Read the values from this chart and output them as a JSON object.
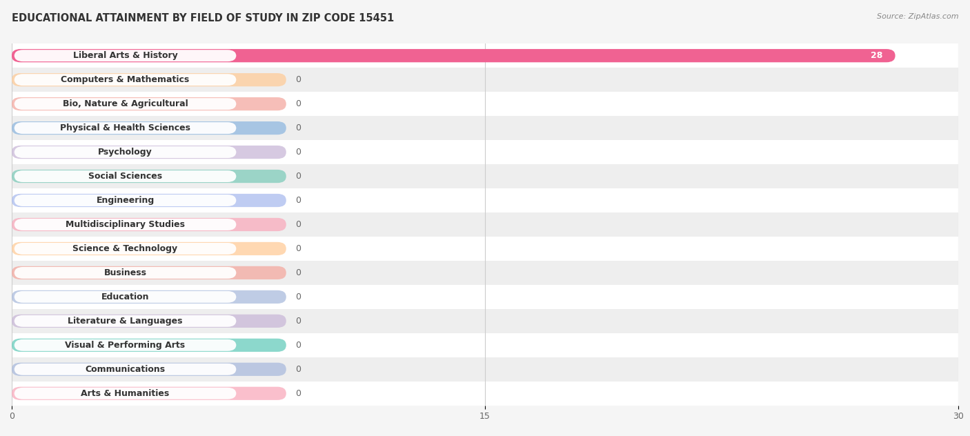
{
  "title": "EDUCATIONAL ATTAINMENT BY FIELD OF STUDY IN ZIP CODE 15451",
  "source": "Source: ZipAtlas.com",
  "categories": [
    "Liberal Arts & History",
    "Computers & Mathematics",
    "Bio, Nature & Agricultural",
    "Physical & Health Sciences",
    "Psychology",
    "Social Sciences",
    "Engineering",
    "Multidisciplinary Studies",
    "Science & Technology",
    "Business",
    "Education",
    "Literature & Languages",
    "Visual & Performing Arts",
    "Communications",
    "Arts & Humanities"
  ],
  "values": [
    28,
    0,
    0,
    0,
    0,
    0,
    0,
    0,
    0,
    0,
    0,
    0,
    0,
    0,
    0
  ],
  "bar_colors": [
    "#F06292",
    "#FFCC99",
    "#F4A9A0",
    "#90B8E0",
    "#C9B8D8",
    "#80CCBB",
    "#AABBEE",
    "#F9AABC",
    "#FFCC99",
    "#F4A9A0",
    "#AABBDD",
    "#C9B8D8",
    "#66CCBB",
    "#AABBDD",
    "#F9AABC"
  ],
  "xlim": [
    0,
    30
  ],
  "xticks": [
    0,
    15,
    30
  ],
  "background_color": "#f5f5f5",
  "title_fontsize": 10.5,
  "label_fontsize": 9
}
